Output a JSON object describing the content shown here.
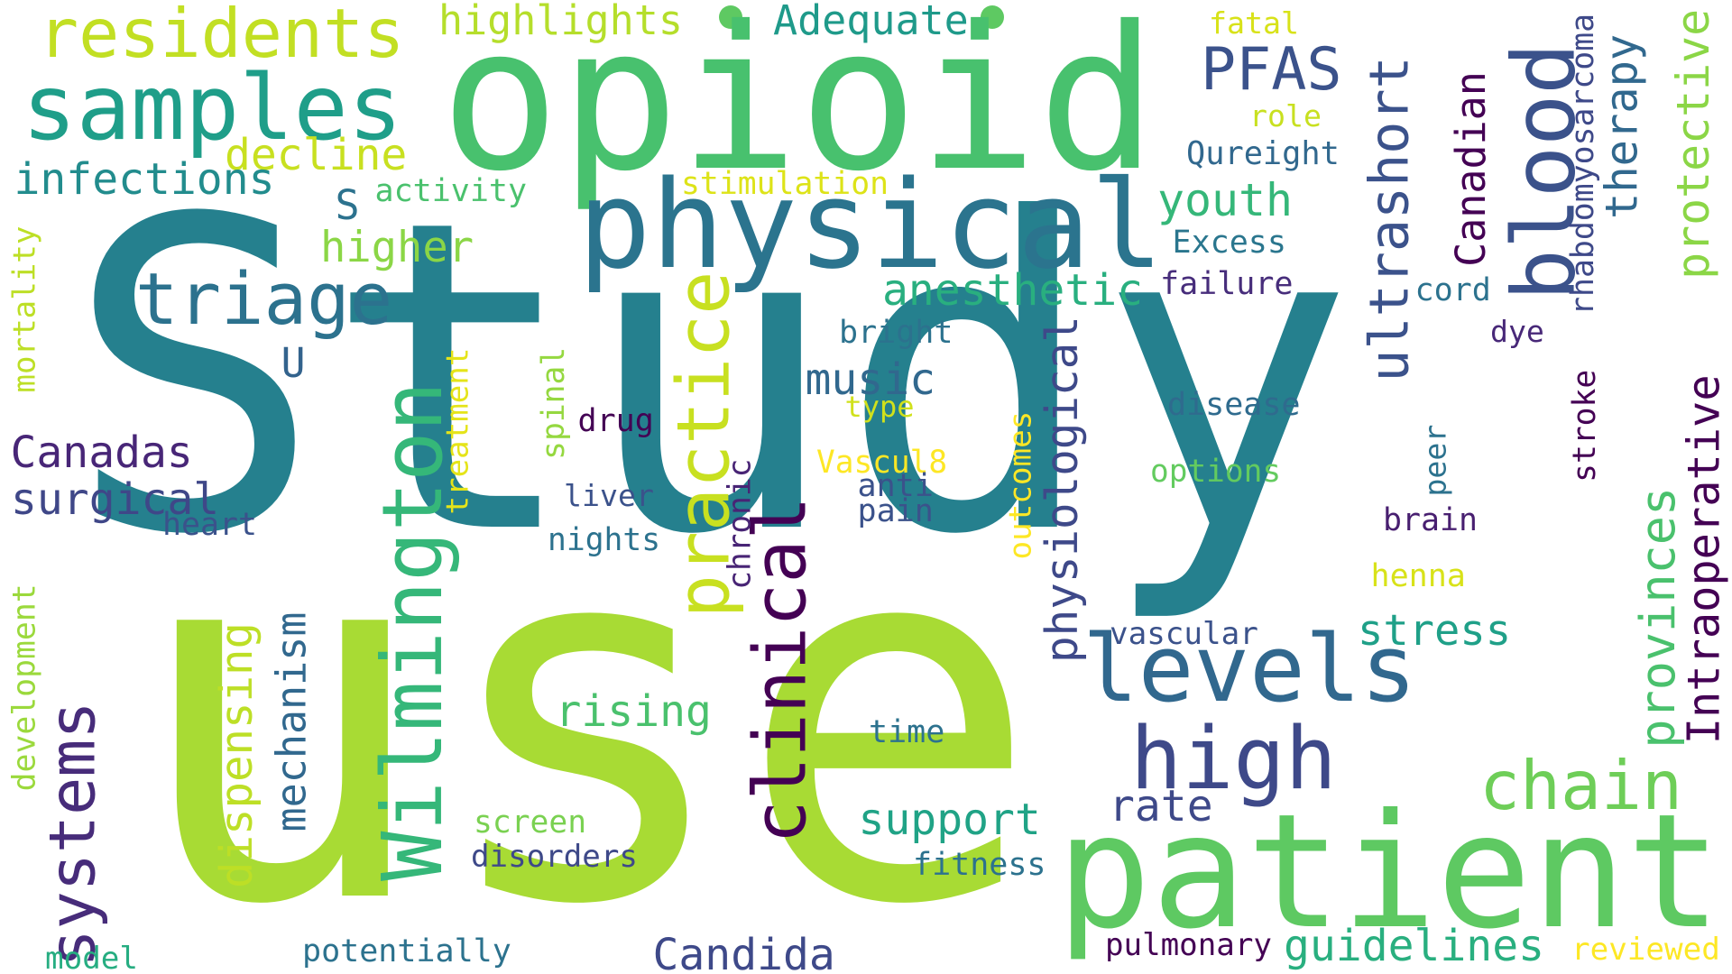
{
  "words": [
    {
      "text": "Study",
      "color": "#25808e"
    },
    {
      "text": "use",
      "color": "#a8db34"
    },
    {
      "text": "opioid",
      "color": "#48c16e"
    },
    {
      "text": "patient",
      "color": "#5ec962"
    },
    {
      "text": "physical",
      "color": "#2b748e"
    },
    {
      "text": "samples",
      "color": "#1f9e89"
    },
    {
      "text": "residents",
      "color": "#c2df23"
    },
    {
      "text": "triage",
      "color": "#2c728e"
    },
    {
      "text": "blood",
      "color": "#3b528b"
    },
    {
      "text": "PFAS",
      "color": "#3b528b"
    },
    {
      "text": "ultrashort",
      "color": "#3b528b"
    },
    {
      "text": "Wilmington",
      "color": "#35b779"
    },
    {
      "text": "practice",
      "color": "#c8e020"
    },
    {
      "text": "clinical",
      "color": "#440154"
    },
    {
      "text": "levels",
      "color": "#31688e"
    },
    {
      "text": "high",
      "color": "#3e4989"
    },
    {
      "text": "systems",
      "color": "#472c7a"
    },
    {
      "text": "chain",
      "color": "#6ece58"
    },
    {
      "text": "highlights",
      "color": "#b5de2b"
    },
    {
      "text": "Adequate",
      "color": "#1f9a8a"
    },
    {
      "text": "fatal",
      "color": "#d8e219"
    },
    {
      "text": "role",
      "color": "#c8e020"
    },
    {
      "text": "Qureight",
      "color": "#31688e"
    },
    {
      "text": "decline",
      "color": "#c8e020"
    },
    {
      "text": "infections",
      "color": "#228c8d"
    },
    {
      "text": "activity",
      "color": "#4ac16d"
    },
    {
      "text": "stimulation",
      "color": "#dde318"
    },
    {
      "text": "youth",
      "color": "#35b779"
    },
    {
      "text": "Excess",
      "color": "#2a768e"
    },
    {
      "text": "S",
      "color": "#2c728e"
    },
    {
      "text": "higher",
      "color": "#8bd646"
    },
    {
      "text": "anesthetic",
      "color": "#29af7f"
    },
    {
      "text": "failure",
      "color": "#472d7b"
    },
    {
      "text": "Canadian",
      "color": "#440154"
    },
    {
      "text": "cord",
      "color": "#2c728e"
    },
    {
      "text": "therapy",
      "color": "#31688e"
    },
    {
      "text": "rhabdomyosarcoma",
      "color": "#3e4989"
    },
    {
      "text": "protective",
      "color": "#8bd646"
    },
    {
      "text": "dye",
      "color": "#482878"
    },
    {
      "text": "mortality",
      "color": "#bddf26"
    },
    {
      "text": "U",
      "color": "#33638d"
    },
    {
      "text": "bright",
      "color": "#2c728e"
    },
    {
      "text": "music",
      "color": "#31688e"
    },
    {
      "text": "type",
      "color": "#d0e11c"
    },
    {
      "text": "Canadas",
      "color": "#482677"
    },
    {
      "text": "drug",
      "color": "#440154"
    },
    {
      "text": "spinal",
      "color": "#95d840"
    },
    {
      "text": "treatment",
      "color": "#e5e419"
    },
    {
      "text": "physiological",
      "color": "#3e4989"
    },
    {
      "text": "disease",
      "color": "#2f6b8e"
    },
    {
      "text": "stroke",
      "color": "#440154"
    },
    {
      "text": "Intraoperative",
      "color": "#440154"
    },
    {
      "text": "surgical",
      "color": "#3f4788"
    },
    {
      "text": "heart",
      "color": "#3b528b"
    },
    {
      "text": "Vascul8",
      "color": "#fde725"
    },
    {
      "text": "options",
      "color": "#63cb5f"
    },
    {
      "text": "peer",
      "color": "#2c728e"
    },
    {
      "text": "liver",
      "color": "#3b528b"
    },
    {
      "text": "anti",
      "color": "#3b528b"
    },
    {
      "text": "pain",
      "color": "#3b528b"
    },
    {
      "text": "outcomes",
      "color": "#fde725"
    },
    {
      "text": "brain",
      "color": "#481f70"
    },
    {
      "text": "nights",
      "color": "#2c728e"
    },
    {
      "text": "chronic",
      "color": "#482475"
    },
    {
      "text": "henna",
      "color": "#d8e219"
    },
    {
      "text": "provinces",
      "color": "#4ac16d"
    },
    {
      "text": "development",
      "color": "#9bd93c"
    },
    {
      "text": "dispensing",
      "color": "#bddf26"
    },
    {
      "text": "mechanism",
      "color": "#31688e"
    },
    {
      "text": "vascular",
      "color": "#3b528b"
    },
    {
      "text": "stress",
      "color": "#1fa088"
    },
    {
      "text": "rising",
      "color": "#4ac16d"
    },
    {
      "text": "time",
      "color": "#2c728e"
    },
    {
      "text": "rate",
      "color": "#3e4989"
    },
    {
      "text": "support",
      "color": "#20a386"
    },
    {
      "text": "screen",
      "color": "#7ad151"
    },
    {
      "text": "disorders",
      "color": "#3e4989"
    },
    {
      "text": "fitness",
      "color": "#2c728e"
    },
    {
      "text": "model",
      "color": "#26ad81"
    },
    {
      "text": "potentially",
      "color": "#2c728e"
    },
    {
      "text": "Candida",
      "color": "#3e4989"
    },
    {
      "text": "pulmonary",
      "color": "#440154"
    },
    {
      "text": "guidelines",
      "color": "#29af7f"
    },
    {
      "text": "reviewed",
      "color": "#fde725"
    }
  ]
}
